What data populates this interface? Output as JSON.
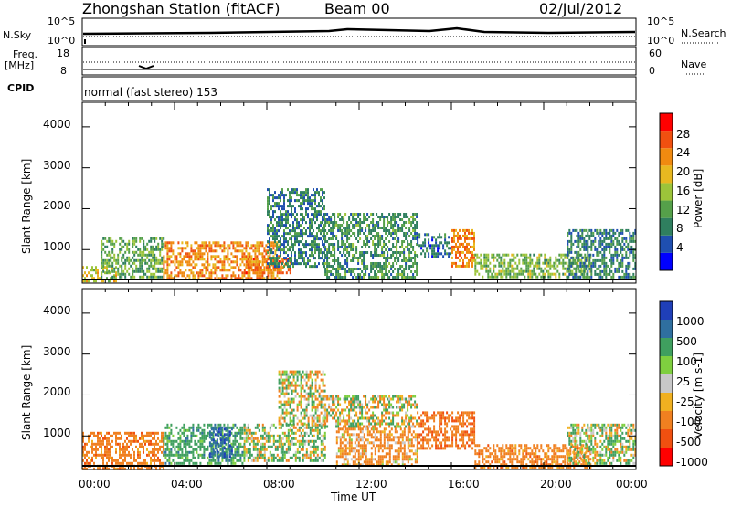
{
  "header": {
    "station": "Zhongshan Station (fitACF)",
    "beam": "Beam 00",
    "date": "02/Jul/2012"
  },
  "strip_labels": {
    "nsky": "N.Sky",
    "nsky_ticks": [
      "10^5",
      "10^0"
    ],
    "nsearch": "N.Search",
    "nsearch_ticks": [
      "10^5",
      "10^0"
    ],
    "freq_line1": "Freq.",
    "freq_line2": "[MHz]",
    "freq_ticks": [
      "18",
      "8"
    ],
    "nave": "Nave",
    "nave_ticks": [
      "60",
      "0"
    ],
    "cpid": "CPID",
    "mode": "normal (fast stereo) 153"
  },
  "axes": {
    "x_label": "Time UT",
    "x_ticks": [
      "00:00",
      "04:00",
      "08:00",
      "12:00",
      "16:00",
      "20:00",
      "00:00"
    ],
    "y_label": "Slant Range [km]",
    "y_ticks": [
      "1000",
      "2000",
      "3000",
      "4000"
    ]
  },
  "power_scale": {
    "label": "Power [dB]",
    "ticks": [
      "4",
      "8",
      "12",
      "16",
      "20",
      "24",
      "28"
    ],
    "colors": [
      "#0000ff",
      "#1f4fb0",
      "#2f7f5f",
      "#55a04a",
      "#9cc43a",
      "#e8b820",
      "#f08a10",
      "#f05010",
      "#ff0000"
    ]
  },
  "velocity_scale": {
    "label": "Velocity [m s-1]",
    "ticks": [
      "1000",
      "500",
      "100",
      "25",
      "-25",
      "-100",
      "-500",
      "-1000"
    ],
    "colors": [
      "#1f3fb8",
      "#2f6f9f",
      "#3f9f5f",
      "#7fcf3f",
      "#c8c8c8",
      "#f0b020",
      "#f08020",
      "#f05010",
      "#ff0000"
    ]
  },
  "chart_data": [
    {
      "type": "heatmap",
      "title": "Power",
      "xlabel": "Time UT",
      "ylabel": "Slant Range [km]",
      "xlim": [
        "00:00",
        "24:00"
      ],
      "ylim": [
        180,
        4600
      ],
      "colorbar": {
        "label": "Power [dB]",
        "ticks": [
          4,
          8,
          12,
          16,
          20,
          24,
          28
        ]
      },
      "regions": [
        {
          "t0": 0.0,
          "t1": 1.5,
          "r0": 200,
          "r1": 600,
          "value": 20
        },
        {
          "t0": 0.8,
          "t1": 3.5,
          "r0": 300,
          "r1": 1300,
          "value": 14
        },
        {
          "t0": 3.5,
          "t1": 8.5,
          "r0": 300,
          "r1": 1200,
          "value": 26
        },
        {
          "t0": 7.0,
          "t1": 9.0,
          "r0": 400,
          "r1": 800,
          "value": 28
        },
        {
          "t0": 8.0,
          "t1": 10.5,
          "r0": 600,
          "r1": 2500,
          "value": 10
        },
        {
          "t0": 10.5,
          "t1": 14.5,
          "r0": 300,
          "r1": 1900,
          "value": 12
        },
        {
          "t0": 14.5,
          "t1": 16.0,
          "r0": 800,
          "r1": 1400,
          "value": 8
        },
        {
          "t0": 16.0,
          "t1": 17.0,
          "r0": 600,
          "r1": 1500,
          "value": 26
        },
        {
          "t0": 17.0,
          "t1": 22.0,
          "r0": 300,
          "r1": 900,
          "value": 16
        },
        {
          "t0": 21.0,
          "t1": 24.0,
          "r0": 300,
          "r1": 1500,
          "value": 10
        }
      ]
    },
    {
      "type": "heatmap",
      "title": "Velocity",
      "xlabel": "Time UT",
      "ylabel": "Slant Range [km]",
      "xlim": [
        "00:00",
        "24:00"
      ],
      "ylim": [
        180,
        4600
      ],
      "colorbar": {
        "label": "Velocity [m s-1]",
        "ticks": [
          1000,
          500,
          100,
          25,
          -25,
          -100,
          -500,
          -1000
        ]
      },
      "regions": [
        {
          "t0": 0.0,
          "t1": 3.5,
          "r0": 200,
          "r1": 1100,
          "value": -300
        },
        {
          "t0": 3.5,
          "t1": 7.0,
          "r0": 300,
          "r1": 1300,
          "value": 300
        },
        {
          "t0": 5.5,
          "t1": 6.5,
          "r0": 500,
          "r1": 1200,
          "value": 900
        },
        {
          "t0": 7.0,
          "t1": 10.5,
          "r0": 400,
          "r1": 1300,
          "value": 80
        },
        {
          "t0": 8.5,
          "t1": 10.5,
          "r0": 1300,
          "r1": 2600,
          "value": 0
        },
        {
          "t0": 10.5,
          "t1": 14.5,
          "r0": 1200,
          "r1": 2000,
          "value": 0
        },
        {
          "t0": 11.0,
          "t1": 14.5,
          "r0": 300,
          "r1": 1200,
          "value": -200
        },
        {
          "t0": 14.5,
          "t1": 17.0,
          "r0": 700,
          "r1": 1600,
          "value": -400
        },
        {
          "t0": 17.0,
          "t1": 22.0,
          "r0": 250,
          "r1": 800,
          "value": -300
        },
        {
          "t0": 21.0,
          "t1": 24.0,
          "r0": 300,
          "r1": 1300,
          "value": 40
        }
      ]
    }
  ]
}
